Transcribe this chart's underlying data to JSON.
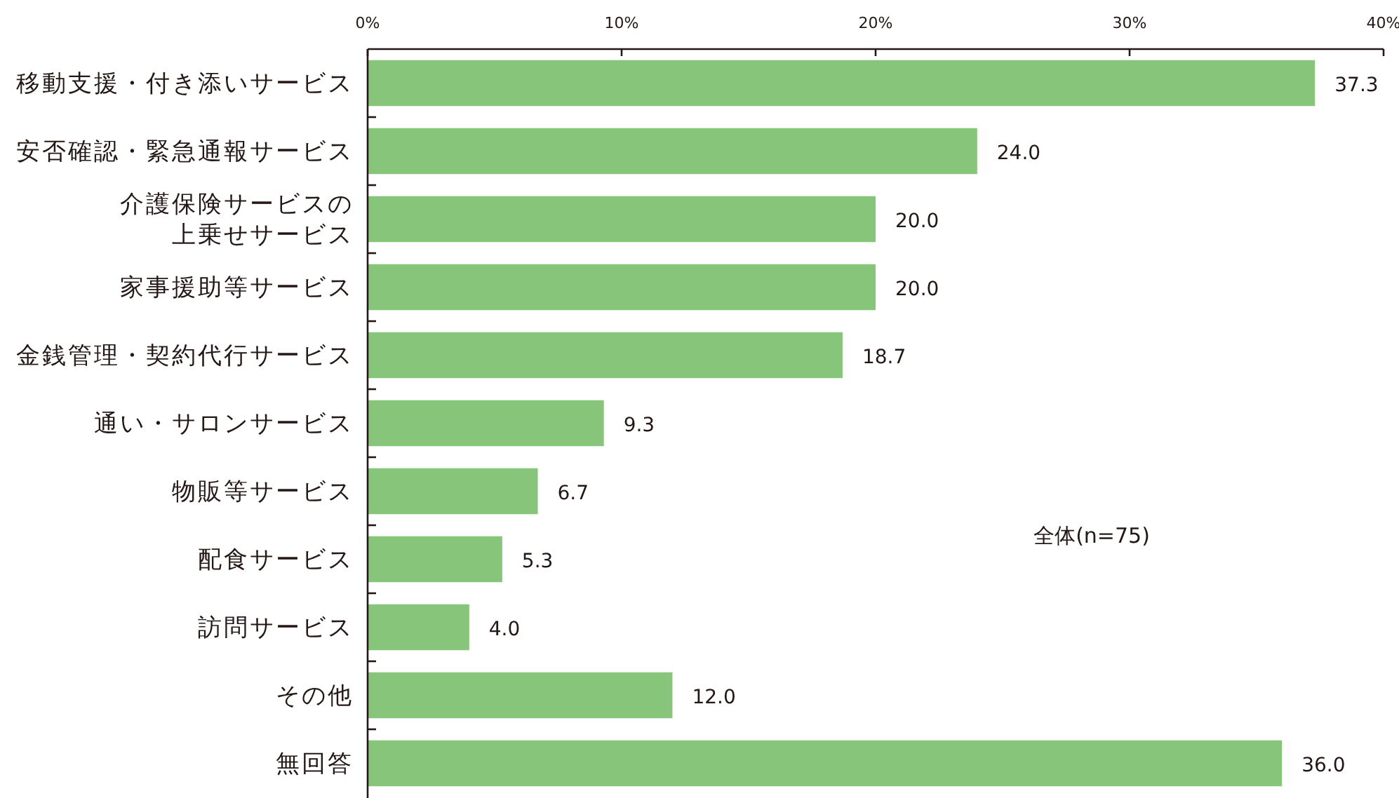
{
  "chart_data": {
    "type": "bar",
    "orientation": "horizontal",
    "categories": [
      "移動支援・付き添いサービス",
      "安否確認・緊急通報サービス",
      "介護保険サービスの上乗せサービス",
      "家事援助等サービス",
      "金銭管理・契約代行サービス",
      "通い・サロンサービス",
      "物販等サービス",
      "配食サービス",
      "訪問サービス",
      "その他",
      "無回答"
    ],
    "values": [
      37.3,
      24.0,
      20.0,
      20.0,
      18.7,
      9.3,
      6.7,
      5.3,
      4.0,
      12.0,
      36.0
    ],
    "value_labels": [
      "37.3",
      "24.0",
      "20.0",
      "20.0",
      "18.7",
      "9.3",
      "6.7",
      "5.3",
      "4.0",
      "12.0",
      "36.0"
    ],
    "color": "#87c57a",
    "xlim": [
      0,
      40
    ],
    "xticks": [
      {
        "value": 0,
        "label": "0%"
      },
      {
        "value": 10,
        "label": "10%"
      },
      {
        "value": 20,
        "label": "20%"
      },
      {
        "value": 30,
        "label": "30%"
      },
      {
        "value": 40,
        "label": "40%"
      }
    ],
    "annotations": [
      "全体(n=75)"
    ]
  }
}
